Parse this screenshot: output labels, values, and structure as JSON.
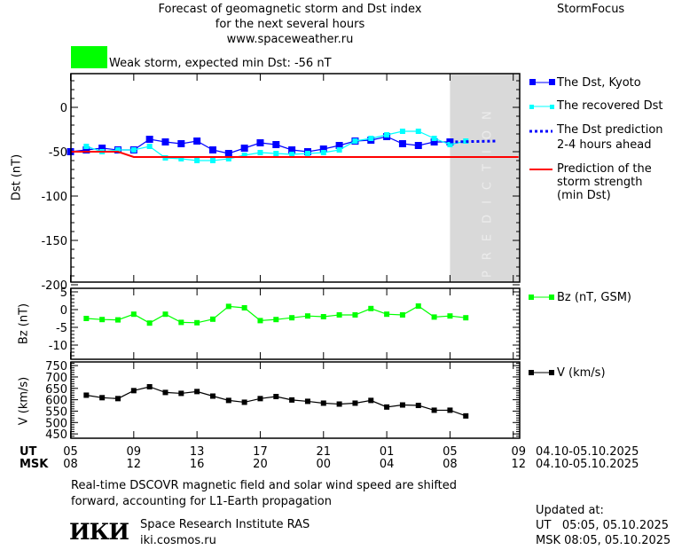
{
  "header": {
    "title_line1": "Forecast of geomagnetic storm and Dst index",
    "title_line2": "for the next several hours",
    "url": "www.spaceweather.ru",
    "brand": "StormFocus",
    "storm_status": "Weak storm, expected min Dst: -56 nT",
    "storm_color": "#00ff00"
  },
  "prediction_label": "PREDICTION",
  "legend": {
    "kyoto": "The Dst, Kyoto",
    "recovered": "The recovered Dst",
    "prediction_1": "The Dst prediction",
    "prediction_2": "2-4 hours ahead",
    "strength_1": "Prediction of the",
    "strength_2": "storm strength",
    "strength_3": "(min Dst)",
    "bz": "Bz (nT, GSM)",
    "v": "V (km/s)"
  },
  "xaxis": {
    "ut_label": "UT",
    "msk_label": "MSK",
    "ut_ticks": [
      "05",
      "09",
      "13",
      "17",
      "21",
      "01",
      "05",
      "09"
    ],
    "msk_ticks": [
      "08",
      "12",
      "16",
      "20",
      "00",
      "04",
      "08",
      "12"
    ],
    "ut_range": "04.10-05.10.2025",
    "msk_range": "04.10-05.10.2025"
  },
  "footer": {
    "note_line1": "Real-time DSCOVR magnetic field and solar wind speed are shifted",
    "note_line2": "forward, accounting for L1-Earth propagation",
    "logo": "ИКИ",
    "institute": "Space Research Institute RAS",
    "site": "iki.cosmos.ru",
    "updated_label": "Updated at:",
    "updated_ut": "UT   05:05, 05.10.2025",
    "updated_msk": "MSK 08:05, 05.10.2025"
  },
  "chart_data": [
    {
      "type": "line",
      "panel": "dst",
      "ylabel": "Dst (nT)",
      "ylim": [
        -197,
        38
      ],
      "yticks": [
        "0",
        "-50",
        "-100",
        "-150",
        "-200"
      ],
      "prediction_region_start": "2025-10-05T05:00",
      "series": [
        {
          "name": "The Dst, Kyoto",
          "color": "#0000ff",
          "marker": "square-large",
          "x": [
            "2025-10-04T05:00",
            "2025-10-04T06:00",
            "2025-10-04T07:00",
            "2025-10-04T08:00",
            "2025-10-04T09:00",
            "2025-10-04T10:00",
            "2025-10-04T11:00",
            "2025-10-04T12:00",
            "2025-10-04T13:00",
            "2025-10-04T14:00",
            "2025-10-04T15:00",
            "2025-10-04T16:00",
            "2025-10-04T17:00",
            "2025-10-04T18:00",
            "2025-10-04T19:00",
            "2025-10-04T20:00",
            "2025-10-04T21:00",
            "2025-10-04T22:00",
            "2025-10-04T23:00",
            "2025-10-05T00:00",
            "2025-10-05T01:00",
            "2025-10-05T02:00",
            "2025-10-05T03:00",
            "2025-10-05T04:00",
            "2025-10-05T05:00"
          ],
          "y": [
            -50,
            -48,
            -46,
            -48,
            -48,
            -36,
            -39,
            -41,
            -38,
            -48,
            -52,
            -46,
            -40,
            -42,
            -48,
            -50,
            -47,
            -43,
            -38,
            -37,
            -33,
            -41,
            -43,
            -39,
            -39
          ]
        },
        {
          "name": "The recovered Dst",
          "color": "#00ffff",
          "marker": "square-small",
          "x": [
            "2025-10-04T06:00",
            "2025-10-04T07:00",
            "2025-10-04T08:00",
            "2025-10-04T09:00",
            "2025-10-04T10:00",
            "2025-10-04T11:00",
            "2025-10-04T12:00",
            "2025-10-04T13:00",
            "2025-10-04T14:00",
            "2025-10-04T15:00",
            "2025-10-04T16:00",
            "2025-10-04T17:00",
            "2025-10-04T18:00",
            "2025-10-04T19:00",
            "2025-10-04T20:00",
            "2025-10-04T21:00",
            "2025-10-04T22:00",
            "2025-10-04T23:00",
            "2025-10-05T00:00",
            "2025-10-05T01:00",
            "2025-10-05T02:00",
            "2025-10-05T03:00",
            "2025-10-05T04:00",
            "2025-10-05T05:00",
            "2025-10-05T06:00"
          ],
          "y": [
            -44,
            -50,
            -48,
            -48,
            -44,
            -57,
            -58,
            -60,
            -60,
            -58,
            -54,
            -51,
            -52,
            -53,
            -52,
            -51,
            -48,
            -38,
            -35,
            -31,
            -27,
            -27,
            -35,
            -42,
            -38
          ]
        },
        {
          "name": "The Dst prediction 2-4 hours ahead",
          "color": "#0000ff",
          "style": "dotted",
          "x": [
            "2025-10-05T05:00",
            "2025-10-05T08:00"
          ],
          "y": [
            -39,
            -38
          ]
        },
        {
          "name": "Prediction of the storm strength (min Dst)",
          "color": "#ff0000",
          "style": "solid",
          "x": [
            "2025-10-04T05:00",
            "2025-10-04T08:00",
            "2025-10-04T09:00",
            "2025-10-05T09:20"
          ],
          "y": [
            -50,
            -50,
            -56,
            -56
          ]
        }
      ]
    },
    {
      "type": "line",
      "panel": "bz",
      "ylabel": "Bz (nT)",
      "ylim": [
        -14,
        6
      ],
      "yticks": [
        "5",
        "0",
        "-5",
        "-10"
      ],
      "series": [
        {
          "name": "Bz (nT, GSM)",
          "color": "#00ff00",
          "marker": "square-small",
          "x": [
            "2025-10-04T06:00",
            "2025-10-04T07:00",
            "2025-10-04T08:00",
            "2025-10-04T09:00",
            "2025-10-04T10:00",
            "2025-10-04T11:00",
            "2025-10-04T12:00",
            "2025-10-04T13:00",
            "2025-10-04T14:00",
            "2025-10-04T15:00",
            "2025-10-04T16:00",
            "2025-10-04T17:00",
            "2025-10-04T18:00",
            "2025-10-04T19:00",
            "2025-10-04T20:00",
            "2025-10-04T21:00",
            "2025-10-04T22:00",
            "2025-10-04T23:00",
            "2025-10-05T00:00",
            "2025-10-05T01:00",
            "2025-10-05T02:00",
            "2025-10-05T03:00",
            "2025-10-05T04:00",
            "2025-10-05T05:00",
            "2025-10-05T06:00"
          ],
          "y": [
            -2.5,
            -2.8,
            -2.9,
            -1.3,
            -3.8,
            -1.3,
            -3.6,
            -3.7,
            -2.7,
            0.9,
            0.5,
            -3.1,
            -2.8,
            -2.3,
            -1.8,
            -2.0,
            -1.5,
            -1.5,
            0.3,
            -1.3,
            -1.5,
            1.0,
            -2.1,
            -1.8,
            -2.3
          ]
        }
      ]
    },
    {
      "type": "line",
      "panel": "v",
      "ylabel": "V (km/s)",
      "ylim": [
        431,
        766
      ],
      "yticks": [
        "750",
        "700",
        "650",
        "600",
        "550",
        "500",
        "450"
      ],
      "series": [
        {
          "name": "V (km/s)",
          "color": "#000000",
          "marker": "square-small",
          "x": [
            "2025-10-04T06:00",
            "2025-10-04T07:00",
            "2025-10-04T08:00",
            "2025-10-04T09:00",
            "2025-10-04T10:00",
            "2025-10-04T11:00",
            "2025-10-04T12:00",
            "2025-10-04T13:00",
            "2025-10-04T14:00",
            "2025-10-04T15:00",
            "2025-10-04T16:00",
            "2025-10-04T17:00",
            "2025-10-04T18:00",
            "2025-10-04T19:00",
            "2025-10-04T20:00",
            "2025-10-04T21:00",
            "2025-10-04T22:00",
            "2025-10-04T23:00",
            "2025-10-05T00:00",
            "2025-10-05T01:00",
            "2025-10-05T02:00",
            "2025-10-05T03:00",
            "2025-10-05T04:00",
            "2025-10-05T05:00",
            "2025-10-05T06:00"
          ],
          "y": [
            620,
            609,
            605,
            640,
            657,
            632,
            628,
            636,
            616,
            597,
            589,
            605,
            614,
            599,
            593,
            585,
            581,
            585,
            597,
            568,
            577,
            575,
            554,
            554,
            529
          ]
        }
      ]
    }
  ]
}
